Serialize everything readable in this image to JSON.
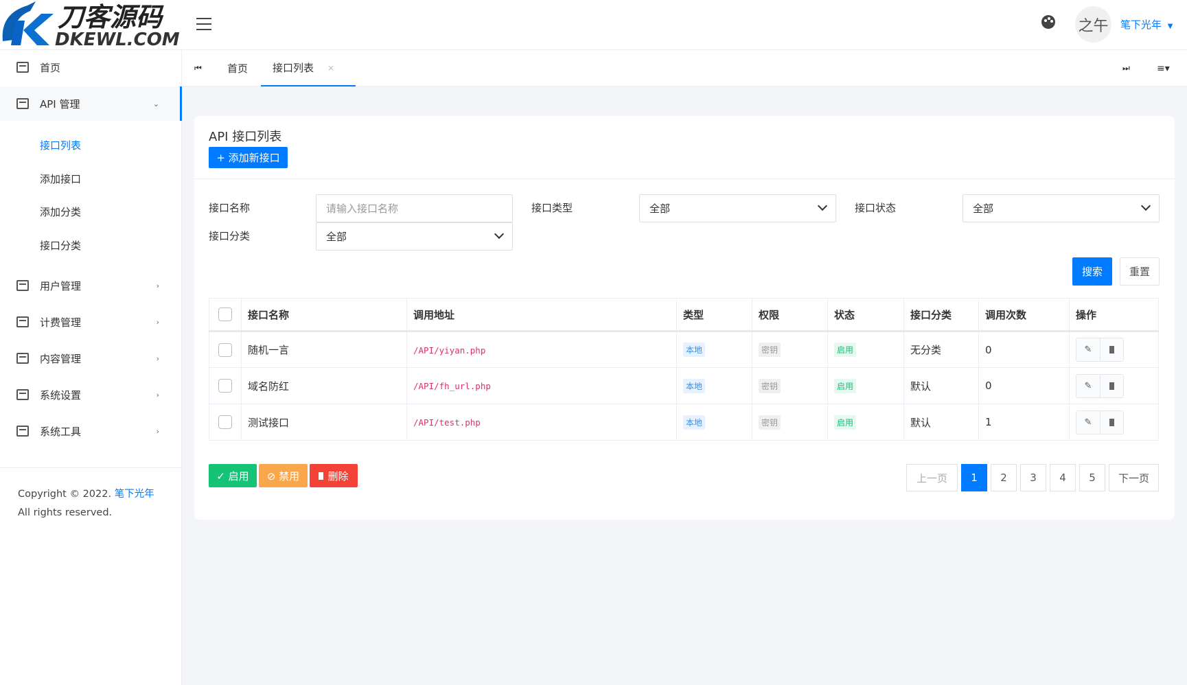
{
  "brand": {
    "logo_cn": "刀客源码",
    "logo_en": "DKEWL.COM",
    "accent": "#007bff"
  },
  "header": {
    "user_name": "笔下光年",
    "avatar_text": "之午",
    "theme_icon": "palette-icon",
    "menu_icon": "hamburger-icon"
  },
  "sidebar": {
    "home": "首页",
    "api": {
      "label": "API 管理",
      "children": [
        "接口列表",
        "添加接口",
        "添加分类",
        "接口分类"
      ]
    },
    "items": [
      "用户管理",
      "计费管理",
      "内容管理",
      "系统设置",
      "系统工具"
    ],
    "copyright_pre": "Copyright © 2022.",
    "copyright_link": "笔下光年",
    "copyright_post": "All rights reserved."
  },
  "tabs": [
    {
      "label": "首页"
    },
    {
      "label": "接口列表",
      "close": "×",
      "active": true
    }
  ],
  "card": {
    "title": "API 接口列表",
    "add_button": "+ 添加新接口",
    "filters": {
      "name_label": "接口名称",
      "name_placeholder": "请输入接口名称",
      "type_label": "接口类型",
      "type_value": "全部",
      "status_label": "接口状态",
      "status_value": "全部",
      "category_label": "接口分类",
      "category_value": "全部"
    },
    "search": "搜索",
    "reset": "重置",
    "table": {
      "headers": [
        "接口名称",
        "调用地址",
        "类型",
        "权限",
        "状态",
        "接口分类",
        "调用次数",
        "操作"
      ],
      "rows": [
        {
          "name": "随机一言",
          "url": "/API/yiyan.php",
          "type": "本地",
          "perm": "密钥",
          "status": "启用",
          "category": "无分类",
          "calls": "0"
        },
        {
          "name": "域名防红",
          "url": "/API/fh_url.php",
          "type": "本地",
          "perm": "密钥",
          "status": "启用",
          "category": "默认",
          "calls": "0"
        },
        {
          "name": "测试接口",
          "url": "/API/test.php",
          "type": "本地",
          "perm": "密钥",
          "status": "启用",
          "category": "默认",
          "calls": "1"
        }
      ]
    },
    "bulk": {
      "enable": "✓ 启用",
      "disable": "⊘ 禁用",
      "delete": "删除"
    },
    "pagination": {
      "prev": "上一页",
      "pages": [
        "1",
        "2",
        "3",
        "4",
        "5"
      ],
      "current": "1",
      "next": "下一页"
    }
  }
}
